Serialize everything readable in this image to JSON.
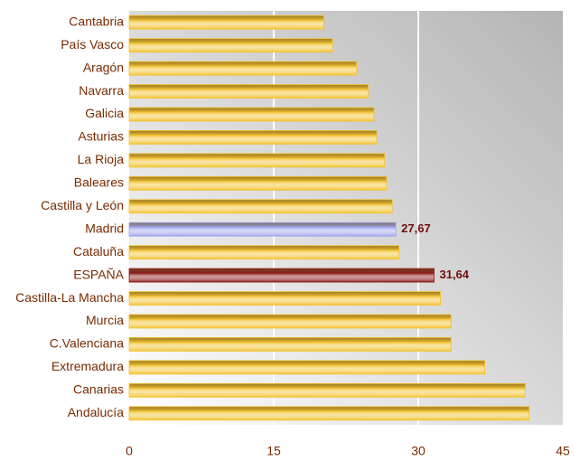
{
  "chart_data": {
    "type": "hbar",
    "categories": [
      "Cantabria",
      "País Vasco",
      "Aragón",
      "Navarra",
      "Galicia",
      "Asturias",
      "La Rioja",
      "Baleares",
      "Castilla y León",
      "Madrid",
      "Cataluña",
      "ESPAÑA",
      "Castilla-La Mancha",
      "Murcia",
      "C.Valenciana",
      "Extremadura",
      "Canarias",
      "Andalucía"
    ],
    "values": [
      20.2,
      21.1,
      23.6,
      24.8,
      25.4,
      25.7,
      26.5,
      26.7,
      27.3,
      27.67,
      28.0,
      31.64,
      32.3,
      33.4,
      33.4,
      36.9,
      41.1,
      41.5
    ],
    "value_labels": [
      null,
      null,
      null,
      null,
      null,
      null,
      null,
      null,
      null,
      "27,67",
      null,
      "31,64",
      null,
      null,
      null,
      null,
      null,
      null
    ],
    "colors": [
      "#f2c230",
      "#f2c230",
      "#f2c230",
      "#f2c230",
      "#f2c230",
      "#f2c230",
      "#f2c230",
      "#f2c230",
      "#f2c230",
      "#9ea6ee",
      "#f2c230",
      "#8c1c1c",
      "#f2c230",
      "#f2c230",
      "#f2c230",
      "#f2c230",
      "#f2c230",
      "#f2c230"
    ],
    "xlim": [
      0,
      45
    ],
    "xticks": [
      0,
      15,
      30,
      45
    ],
    "grid": true
  }
}
